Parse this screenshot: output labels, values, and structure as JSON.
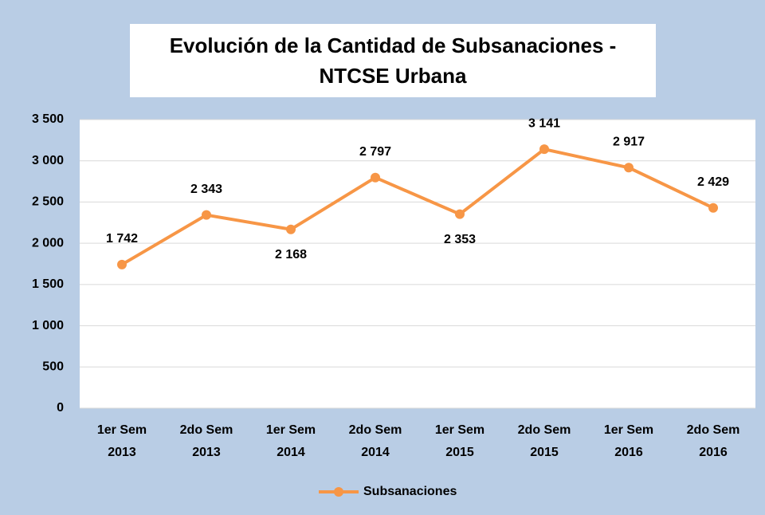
{
  "chart_data": {
    "type": "line",
    "title": "Evolución de la Cantidad de Subsanaciones - NTCSE Urbana",
    "categories": [
      "1er Sem 2013",
      "2do Sem 2013",
      "1er Sem 2014",
      "2do Sem 2014",
      "1er Sem 2015",
      "2do Sem 2015",
      "1er Sem 2016",
      "2do Sem 2016"
    ],
    "series": [
      {
        "name": "Subsanaciones",
        "color": "#f79646",
        "values": [
          1742,
          2343,
          2168,
          2797,
          2353,
          3141,
          2917,
          2429
        ],
        "value_labels": [
          "1 742",
          "2 343",
          "2 168",
          "2 797",
          "2 353",
          "3 141",
          "2 917",
          "2 429"
        ]
      }
    ],
    "ylim": [
      0,
      3500
    ],
    "yticks": [
      0,
      500,
      {
        "value": 1000,
        "label": "1 000"
      },
      {
        "value": 1500,
        "label": "1 500"
      },
      {
        "value": 2000,
        "label": "2 000"
      },
      {
        "value": 2500,
        "label": "2 500"
      },
      {
        "value": 3000,
        "label": "3 000"
      },
      {
        "value": 3500,
        "label": "3 500"
      }
    ],
    "grid": true,
    "legend": "bottom"
  }
}
